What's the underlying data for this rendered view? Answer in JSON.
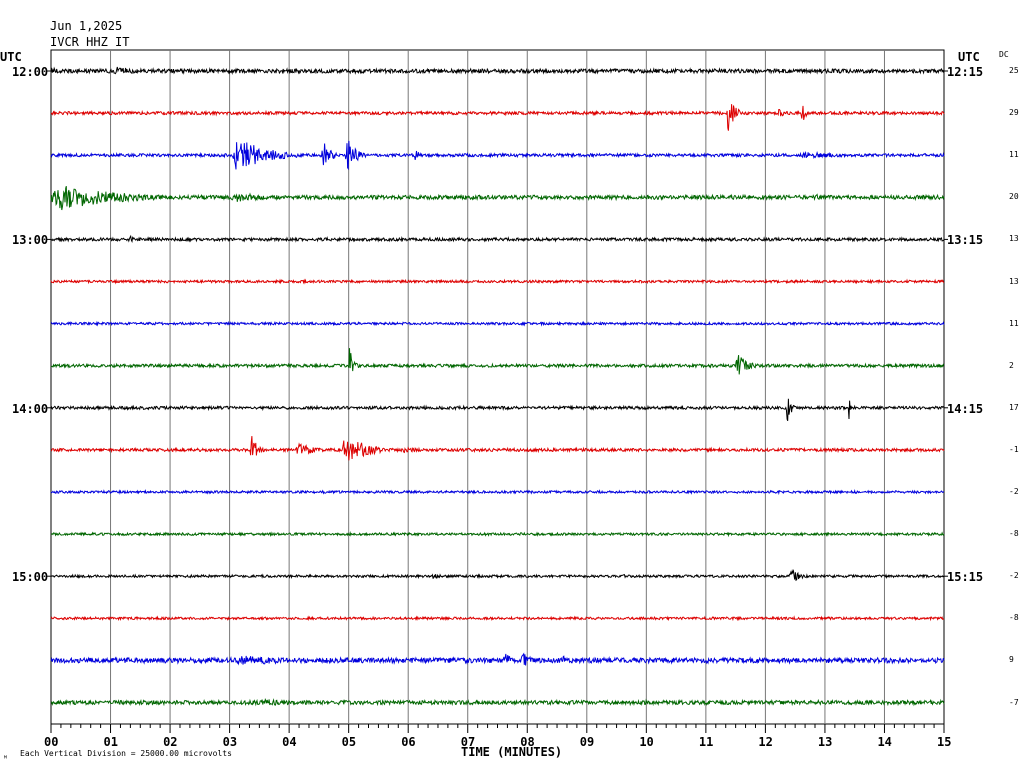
{
  "header": {
    "date": "Jun 1,2025",
    "station": "IVCR HHZ IT"
  },
  "left_axis": {
    "label": "UTC",
    "times": [
      "12:00",
      "13:00",
      "14:00",
      "15:00"
    ]
  },
  "right_axis": {
    "label": "UTC",
    "dc_label": "DC",
    "times": [
      "12:15",
      "13:15",
      "14:15",
      "15:15"
    ],
    "dc_values": [
      "25",
      "29",
      "11",
      "20",
      "13",
      "13",
      "11",
      "2",
      "17",
      "-1",
      "-2",
      "-8",
      "-2",
      "-8",
      "9",
      "-7"
    ]
  },
  "footer": {
    "corner_mark": "ᴹ",
    "scale_note": "Each Vertical Division = 25000.00 microvolts",
    "xlabel": "TIME (MINUTES)"
  },
  "chart_data": {
    "type": "line",
    "title": "Jun 1,2025  IVCR HHZ IT",
    "xlabel": "TIME (MINUTES)",
    "ylabel": "UTC",
    "xlim": [
      0,
      15
    ],
    "x_ticks": [
      "00",
      "01",
      "02",
      "03",
      "04",
      "05",
      "06",
      "07",
      "08",
      "09",
      "10",
      "11",
      "12",
      "13",
      "14",
      "15"
    ],
    "grid": true,
    "trace_colors": [
      "#000000",
      "#dd0000",
      "#0000dd",
      "#006600"
    ],
    "traces": [
      {
        "start": "12:00",
        "noise": 2.0,
        "events": [
          {
            "t": 0.0,
            "dur": 0.6,
            "amp": 4
          },
          {
            "t": 1.0,
            "dur": 1.6,
            "amp": 5
          }
        ]
      },
      {
        "start": "12:15",
        "noise": 1.5,
        "events": [
          {
            "t": 11.35,
            "dur": 0.3,
            "amp": 27
          },
          {
            "t": 12.2,
            "dur": 0.15,
            "amp": 18
          },
          {
            "t": 12.6,
            "dur": 0.15,
            "amp": 18
          }
        ]
      },
      {
        "start": "12:30",
        "noise": 1.5,
        "events": [
          {
            "t": 3.05,
            "dur": 1.4,
            "amp": 22
          },
          {
            "t": 4.55,
            "dur": 0.35,
            "amp": 18
          },
          {
            "t": 4.95,
            "dur": 0.4,
            "amp": 22
          },
          {
            "t": 6.1,
            "dur": 0.3,
            "amp": 7
          },
          {
            "t": 12.5,
            "dur": 2.5,
            "amp": 4
          }
        ]
      },
      {
        "start": "12:45",
        "noise": 2.0,
        "events": [
          {
            "t": 0.0,
            "dur": 2.8,
            "amp": 16
          },
          {
            "t": 3.0,
            "dur": 1.8,
            "amp": 6
          },
          {
            "t": 12.85,
            "dur": 0.3,
            "amp": 6
          }
        ]
      },
      {
        "start": "13:00",
        "noise": 1.5,
        "events": [
          {
            "t": 1.3,
            "dur": 0.15,
            "amp": 8
          }
        ]
      },
      {
        "start": "13:15",
        "noise": 1.2,
        "events": []
      },
      {
        "start": "13:30",
        "noise": 1.2,
        "events": []
      },
      {
        "start": "13:45",
        "noise": 1.5,
        "events": [
          {
            "t": 5.0,
            "dur": 0.2,
            "amp": 22
          },
          {
            "t": 11.5,
            "dur": 0.5,
            "amp": 16
          },
          {
            "t": 12.7,
            "dur": 0.3,
            "amp": 5
          }
        ]
      },
      {
        "start": "14:00",
        "noise": 1.5,
        "events": [
          {
            "t": 12.35,
            "dur": 0.2,
            "amp": 20
          },
          {
            "t": 13.4,
            "dur": 0.05,
            "amp": 20
          }
        ]
      },
      {
        "start": "14:15",
        "noise": 1.5,
        "events": [
          {
            "t": 3.35,
            "dur": 0.35,
            "amp": 18
          },
          {
            "t": 4.1,
            "dur": 0.8,
            "amp": 9
          },
          {
            "t": 4.9,
            "dur": 0.9,
            "amp": 22
          },
          {
            "t": 5.9,
            "dur": 0.8,
            "amp": 4
          }
        ]
      },
      {
        "start": "14:30",
        "noise": 1.2,
        "events": []
      },
      {
        "start": "14:45",
        "noise": 1.2,
        "events": []
      },
      {
        "start": "15:00",
        "noise": 1.2,
        "events": [
          {
            "t": 6.4,
            "dur": 0.4,
            "amp": 4
          },
          {
            "t": 9.6,
            "dur": 0.2,
            "amp": 3
          },
          {
            "t": 12.4,
            "dur": 0.5,
            "amp": 8
          }
        ]
      },
      {
        "start": "15:15",
        "noise": 1.2,
        "events": []
      },
      {
        "start": "15:30",
        "noise": 2.5,
        "events": [
          {
            "t": 3.0,
            "dur": 3.2,
            "amp": 6
          },
          {
            "t": 7.6,
            "dur": 0.35,
            "amp": 10
          },
          {
            "t": 7.9,
            "dur": 0.3,
            "amp": 14
          },
          {
            "t": 8.6,
            "dur": 0.2,
            "amp": 9
          }
        ]
      },
      {
        "start": "15:45",
        "noise": 2.0,
        "events": [
          {
            "t": 3.5,
            "dur": 1.3,
            "amp": 5
          }
        ]
      }
    ]
  }
}
